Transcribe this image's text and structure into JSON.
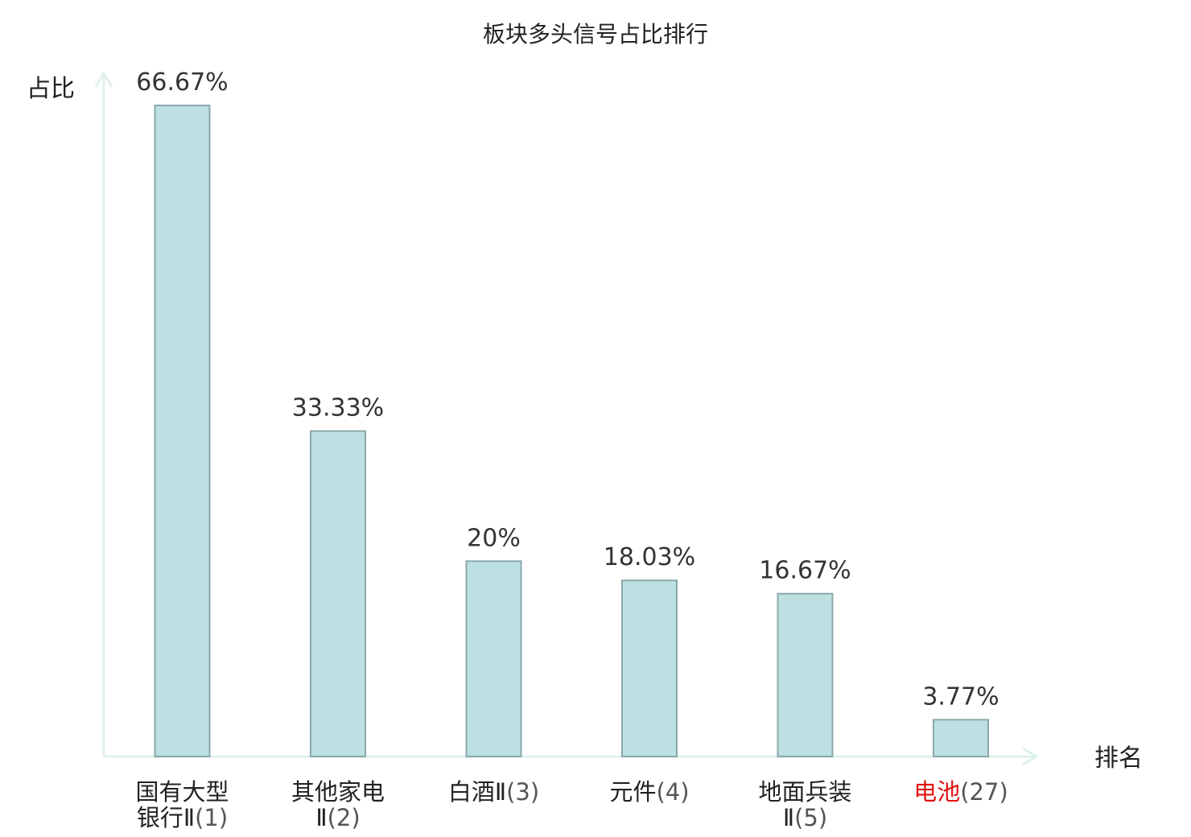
{
  "chart_data": {
    "type": "bar",
    "title": "板块多头信号占比排行",
    "ylabel": "占比",
    "xlabel": "排名",
    "ylim": [
      0,
      70
    ],
    "grid": false,
    "categories": [
      {
        "lines": [
          "国有大型",
          "银行Ⅱ"
        ],
        "rank": "(1)",
        "highlight": false
      },
      {
        "lines": [
          "其他家电",
          "Ⅱ"
        ],
        "rank": "(2)",
        "highlight": false
      },
      {
        "lines": [
          "白酒Ⅱ"
        ],
        "rank": "(3)",
        "highlight": false
      },
      {
        "lines": [
          "元件"
        ],
        "rank": "(4)",
        "highlight": false
      },
      {
        "lines": [
          "地面兵装",
          "Ⅱ"
        ],
        "rank": "(5)",
        "highlight": false
      },
      {
        "lines": [
          "电池"
        ],
        "rank": "(27)",
        "highlight": true
      }
    ],
    "values": [
      66.67,
      33.33,
      20,
      18.03,
      16.67,
      3.77
    ],
    "value_labels": [
      "66.67%",
      "33.33%",
      "20%",
      "18.03%",
      "16.67%",
      "3.77%"
    ],
    "colors": {
      "bar_fill": "#bde0e3",
      "bar_stroke": "#8aa8aa",
      "axis": "#dff1ef",
      "highlight": "#e01010",
      "text": "#222222"
    }
  }
}
